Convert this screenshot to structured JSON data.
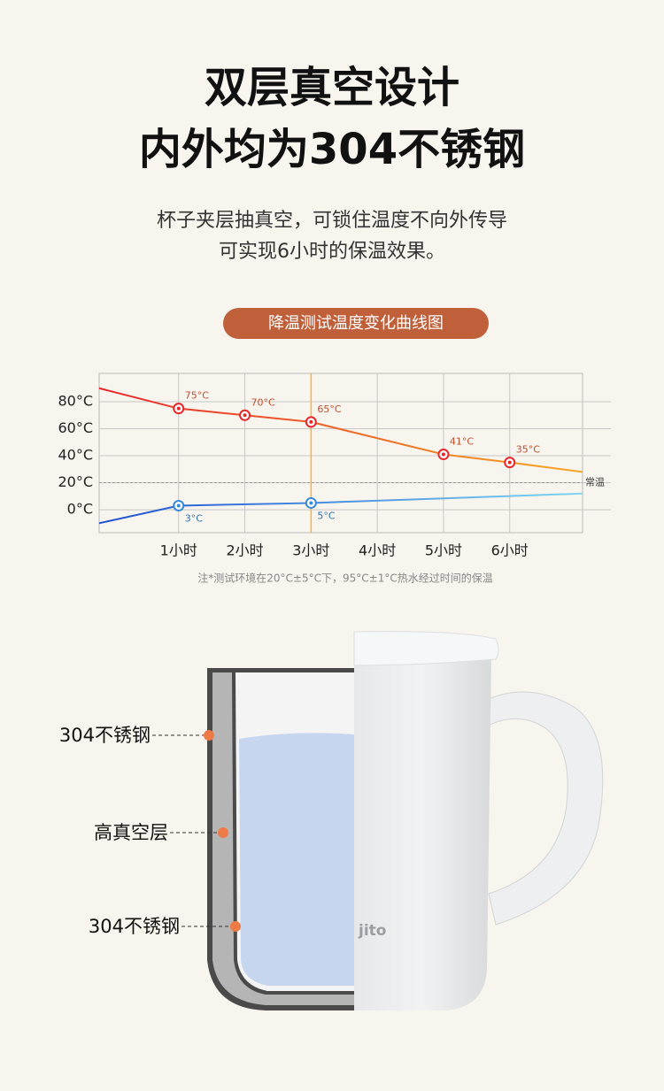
{
  "header": {
    "title_lines": [
      "双层真空设计",
      "内外均为304不锈钢"
    ],
    "subtitle_lines": [
      "杯子夹层抽真空，可锁住温度不向外传导",
      "可实现6小时的保温效果。"
    ]
  },
  "chart_data": {
    "type": "line",
    "title": "降温测试温度变化曲线图",
    "xlim": [
      -0.2,
      7.1
    ],
    "xticks": [
      {
        "value": 1,
        "label": "1小时"
      },
      {
        "value": 2,
        "label": "2小时"
      },
      {
        "value": 3,
        "label": "3小时"
      },
      {
        "value": 4,
        "label": "4小时"
      },
      {
        "value": 5,
        "label": "5小时"
      },
      {
        "value": 6,
        "label": "6小时"
      }
    ],
    "ylim": [
      -17,
      101
    ],
    "yticks": [
      {
        "value": 0,
        "label": "0°C"
      },
      {
        "value": 20,
        "label": "20°C"
      },
      {
        "value": 40,
        "label": "40°C"
      },
      {
        "value": 60,
        "label": "60°C"
      },
      {
        "value": 80,
        "label": "80°C"
      }
    ],
    "grid": true,
    "highlight_x": 3,
    "reference_line": {
      "value": 20,
      "label": "常温"
    },
    "series": [
      {
        "colors": [
          "#e8262a",
          "#f5a623"
        ],
        "x": [
          -0.2,
          1,
          2,
          3,
          5,
          6,
          7.1
        ],
        "values": [
          90,
          75,
          70,
          65,
          41,
          35,
          28
        ],
        "value_labels": [
          null,
          "75°C",
          "70°C",
          "65°C",
          "41°C",
          "35°C",
          null
        ],
        "label_color": "#c0502e"
      },
      {
        "colors": [
          "#1a4fd0",
          "#7fd6f2"
        ],
        "x": [
          -0.2,
          1,
          3,
          7.1
        ],
        "values": [
          -10,
          3,
          5,
          12
        ],
        "value_labels": [
          null,
          "3°C",
          "5°C",
          null
        ],
        "label_color": "#2a73b8"
      }
    ]
  },
  "note": "注*测试环境在20°C±5°C下，95°C±1°C热水经过时间的保温",
  "diagram": {
    "labels": [
      "304不锈钢",
      "高真空层",
      "304不锈钢"
    ],
    "logo": "jito"
  }
}
